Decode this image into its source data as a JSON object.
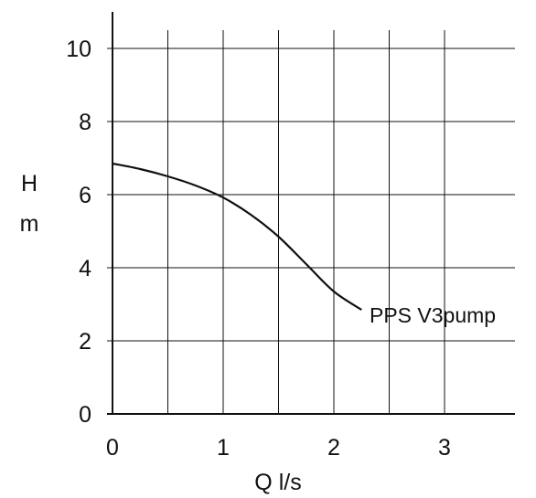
{
  "chart_data": {
    "type": "line",
    "title": "",
    "xlabel": "Q l/s",
    "ylabel_line1": "H",
    "ylabel_line2": "m",
    "xlim": [
      0,
      3.6
    ],
    "ylim": [
      0,
      10.5
    ],
    "x_ticks": [
      0,
      1,
      2,
      3
    ],
    "x_tick_labels": [
      "0",
      "1",
      "2",
      "3"
    ],
    "y_ticks": [
      0,
      2,
      4,
      6,
      8,
      10
    ],
    "y_tick_labels": [
      "0",
      "2",
      "4",
      "6",
      "8",
      "10"
    ],
    "x_grid": [
      0.5,
      1,
      1.5,
      2,
      2.5,
      3
    ],
    "y_grid": [
      2,
      4,
      6,
      8,
      10
    ],
    "grid": true,
    "series": [
      {
        "name": "PPS V3pump",
        "x": [
          0,
          0.25,
          0.5,
          0.75,
          1.0,
          1.25,
          1.5,
          1.75,
          2.0,
          2.25
        ],
        "y": [
          6.85,
          6.7,
          6.5,
          6.25,
          5.92,
          5.45,
          4.85,
          4.1,
          3.35,
          2.85
        ]
      }
    ],
    "annotation": "PPS V3pump",
    "line_color": "#111111",
    "grid_color": "#111111"
  }
}
